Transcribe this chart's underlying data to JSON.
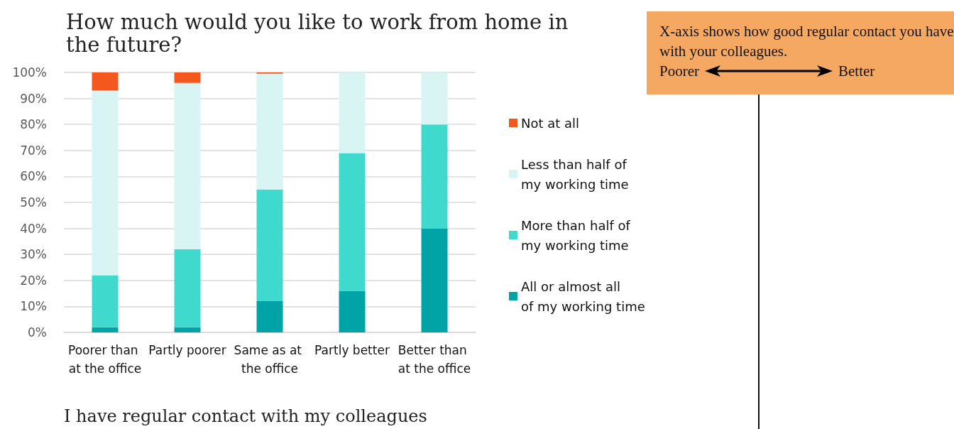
{
  "chart_data": {
    "type": "bar",
    "stacked": true,
    "title": "How much would you like to work from home in the future?",
    "xlabel": "I have regular contact with my colleagues",
    "categories": [
      "Poorer than at the office",
      "Partly poorer",
      "Same as at the office",
      "Partly better",
      "Better than at the office"
    ],
    "series": [
      {
        "name": "All or almost all of my working time",
        "color": "#00a3a6",
        "values": [
          2,
          2,
          12,
          16,
          40
        ]
      },
      {
        "name": "More than half of my working time",
        "color": "#40d9cd",
        "values": [
          20,
          30,
          43,
          53,
          40
        ]
      },
      {
        "name": "Less than half of my working time",
        "color": "#d8f5f4",
        "values": [
          71,
          64,
          44.5,
          31,
          20
        ]
      },
      {
        "name": "Not at all",
        "color": "#f4581f",
        "values": [
          7,
          4,
          0.5,
          0,
          0
        ]
      }
    ],
    "ylim": [
      0,
      100
    ],
    "yticks": [
      {
        "value": 0,
        "label": "0%"
      },
      {
        "value": 10,
        "label": "10%"
      },
      {
        "value": 20,
        "label": "20%"
      },
      {
        "value": 30,
        "label": "30%"
      },
      {
        "value": 40,
        "label": "40%"
      },
      {
        "value": 50,
        "label": "50%"
      },
      {
        "value": 60,
        "label": "60%"
      },
      {
        "value": 70,
        "label": "70%"
      },
      {
        "value": 80,
        "label": "80%"
      },
      {
        "value": 90,
        "label": "90%"
      },
      {
        "value": 100,
        "label": "100%"
      }
    ],
    "grid": "y",
    "legend": "right",
    "annotations": [
      "X-axis shows how good regular contact you have with your colleagues.",
      "Poorer",
      "Better"
    ]
  }
}
